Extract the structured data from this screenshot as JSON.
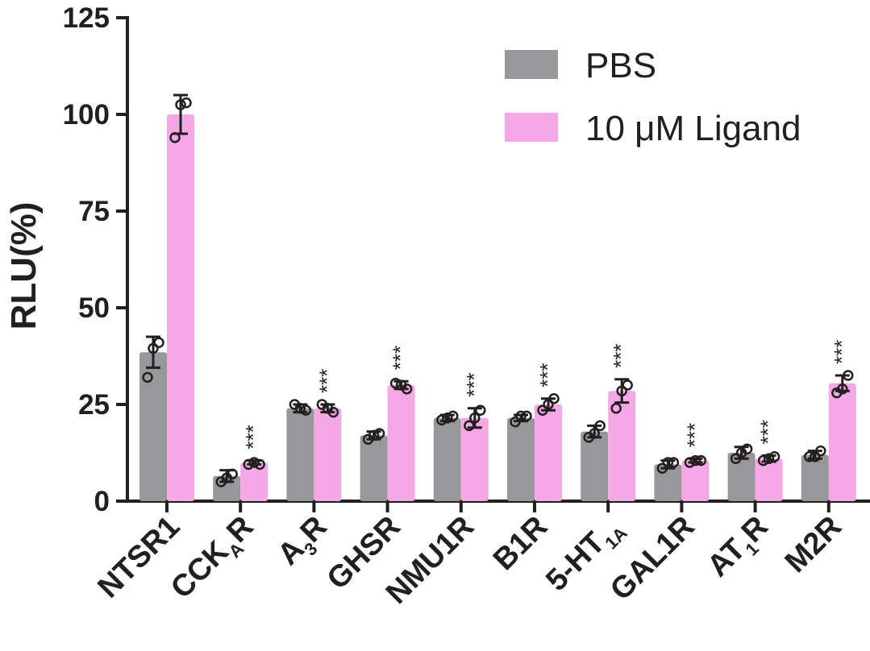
{
  "chart_data": {
    "type": "bar",
    "ylabel": "RLU(%)",
    "xlabel": "",
    "ylim": [
      0,
      125
    ],
    "yticks": [
      "0",
      "25",
      "50",
      "75",
      "100",
      "125"
    ],
    "categories": [
      {
        "main": "NTSR1",
        "sub": ""
      },
      {
        "main": "CCK",
        "sub": "A",
        "suffix": "R"
      },
      {
        "main": "A",
        "sub": "3",
        "suffix": "R"
      },
      {
        "main": "GHSR",
        "sub": ""
      },
      {
        "main": "NMU1R",
        "sub": ""
      },
      {
        "main": "B1R",
        "sub": ""
      },
      {
        "main": "5-HT",
        "sub": "1A"
      },
      {
        "main": "GAL1R",
        "sub": ""
      },
      {
        "main": "AT",
        "sub": "1",
        "suffix": "R"
      },
      {
        "main": "M2R",
        "sub": ""
      }
    ],
    "series": [
      {
        "name": "PBS",
        "color": "#98989b",
        "values": [
          38.5,
          6.5,
          24.0,
          17.0,
          21.5,
          21.5,
          18.0,
          9.5,
          12.5,
          12.0
        ],
        "errors": [
          4.0,
          1.5,
          1.0,
          1.0,
          0.8,
          0.8,
          1.5,
          1.0,
          1.5,
          1.0
        ],
        "points": [
          [
            32.0,
            41.0,
            39.5
          ],
          [
            5.0,
            7.0,
            6.0
          ],
          [
            25.0,
            23.5,
            24.0
          ],
          [
            16.0,
            17.5,
            17.0
          ],
          [
            21.0,
            22.0,
            21.5
          ],
          [
            20.5,
            22.0,
            22.0
          ],
          [
            16.5,
            19.5,
            17.5
          ],
          [
            8.5,
            10.0,
            10.0
          ],
          [
            11.0,
            13.5,
            12.5
          ],
          [
            11.5,
            13.0,
            11.5
          ]
        ],
        "significance": [
          "",
          "",
          "",
          "",
          "",
          "",
          "",
          "",
          "",
          ""
        ]
      },
      {
        "name": "10 μM Ligand",
        "color": "#f4a8e6",
        "values": [
          100.0,
          10.0,
          24.0,
          30.0,
          21.5,
          25.0,
          28.5,
          10.5,
          11.0,
          30.5
        ],
        "errors": [
          5.0,
          0.5,
          1.0,
          1.0,
          2.5,
          1.5,
          3.0,
          0.5,
          0.8,
          2.0
        ],
        "points": [
          [
            94.0,
            103.0,
            102.5
          ],
          [
            9.5,
            9.5,
            10.0
          ],
          [
            25.0,
            23.0,
            24.0
          ],
          [
            30.5,
            29.0,
            30.0
          ],
          [
            19.5,
            23.5,
            21.5
          ],
          [
            23.5,
            26.5,
            25.0
          ],
          [
            24.0,
            30.0,
            28.5
          ],
          [
            10.0,
            10.5,
            10.5
          ],
          [
            10.5,
            11.5,
            11.0
          ],
          [
            28.0,
            32.5,
            29.0
          ]
        ],
        "significance": [
          "",
          "***",
          "***",
          "***",
          "***",
          "***",
          "***",
          "***",
          "***",
          "***"
        ]
      }
    ],
    "legend": "top-right"
  }
}
